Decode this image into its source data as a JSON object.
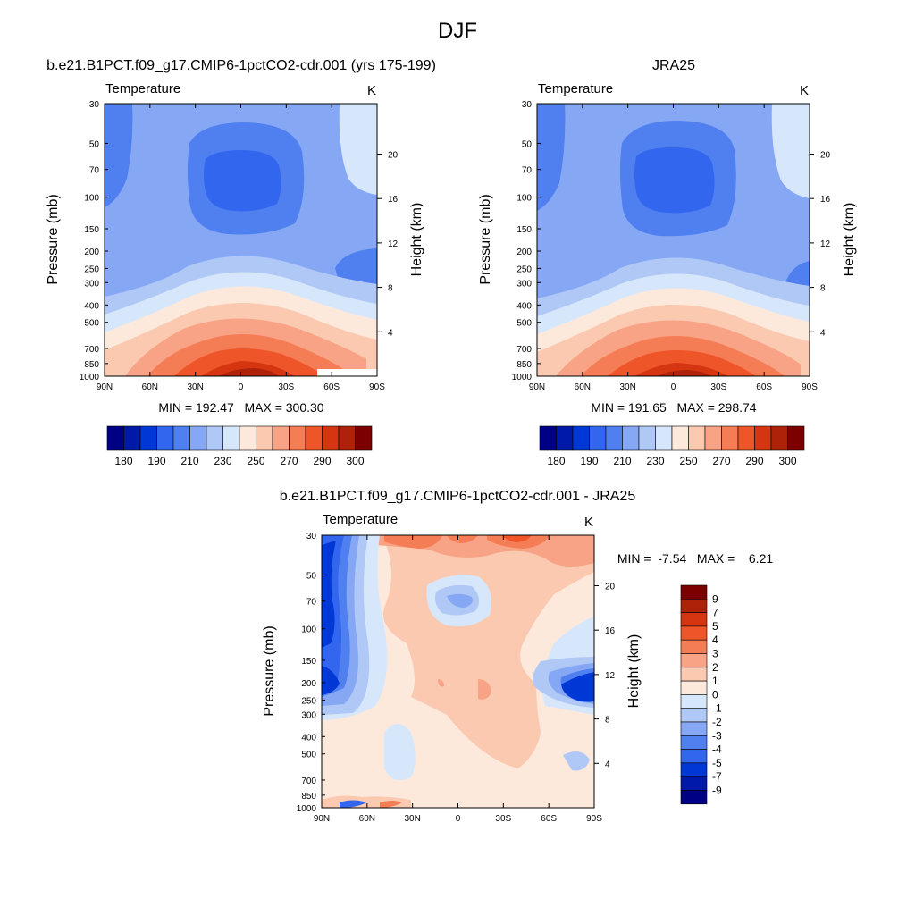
{
  "title": "DJF",
  "chart_data": [
    {
      "type": "heatmap",
      "panel_title": "b.e21.B1PCT.f09_g17.CMIP6-1pctCO2-cdr.001 (yrs 175-199)",
      "variable": "Temperature",
      "units": "K",
      "xlabel": "",
      "ylabel": "Pressure (mb)",
      "y2label": "Height (km)",
      "x_ticks": [
        "90N",
        "60N",
        "30N",
        "0",
        "30S",
        "60S",
        "90S"
      ],
      "y_ticks": [
        "30",
        "50",
        "70",
        "100",
        "150",
        "200",
        "250",
        "300",
        "400",
        "500",
        "700",
        "850",
        "1000"
      ],
      "y_tick_values": [
        30,
        50,
        70,
        100,
        150,
        200,
        250,
        300,
        400,
        500,
        700,
        850,
        1000
      ],
      "height_ticks": [
        "20",
        "16",
        "12",
        "8",
        "4"
      ],
      "height_tick_values": [
        20,
        16,
        12,
        8,
        4
      ],
      "xlim": [
        90,
        -90
      ],
      "ylim": [
        1000,
        30
      ],
      "stats_text": "MIN = 192.47   MAX = 300.30",
      "min": 192.47,
      "max": 300.3
    },
    {
      "type": "heatmap",
      "panel_title": "JRA25",
      "variable": "Temperature",
      "units": "K",
      "xlabel": "",
      "ylabel": "Pressure (mb)",
      "y2label": "Height (km)",
      "x_ticks": [
        "90N",
        "60N",
        "30N",
        "0",
        "30S",
        "60S",
        "90S"
      ],
      "y_ticks": [
        "30",
        "50",
        "70",
        "100",
        "150",
        "200",
        "250",
        "300",
        "400",
        "500",
        "700",
        "850",
        "1000"
      ],
      "y_tick_values": [
        30,
        50,
        70,
        100,
        150,
        200,
        250,
        300,
        400,
        500,
        700,
        850,
        1000
      ],
      "height_ticks": [
        "20",
        "16",
        "12",
        "8",
        "4"
      ],
      "height_tick_values": [
        20,
        16,
        12,
        8,
        4
      ],
      "xlim": [
        90,
        -90
      ],
      "ylim": [
        1000,
        30
      ],
      "stats_text": "MIN = 191.65   MAX = 298.74",
      "min": 191.65,
      "max": 298.74
    },
    {
      "type": "heatmap",
      "panel_title": "b.e21.B1PCT.f09_g17.CMIP6-1pctCO2-cdr.001 - JRA25",
      "variable": "Temperature",
      "units": "K",
      "xlabel": "",
      "ylabel": "Pressure (mb)",
      "y2label": "Height (km)",
      "x_ticks": [
        "90N",
        "60N",
        "30N",
        "0",
        "30S",
        "60S",
        "90S"
      ],
      "y_ticks": [
        "30",
        "50",
        "70",
        "100",
        "150",
        "200",
        "250",
        "300",
        "400",
        "500",
        "700",
        "850",
        "1000"
      ],
      "y_tick_values": [
        30,
        50,
        70,
        100,
        150,
        200,
        250,
        300,
        400,
        500,
        700,
        850,
        1000
      ],
      "height_ticks": [
        "20",
        "16",
        "12",
        "8",
        "4"
      ],
      "height_tick_values": [
        20,
        16,
        12,
        8,
        4
      ],
      "xlim": [
        90,
        -90
      ],
      "ylim": [
        1000,
        30
      ],
      "stats_text": "MIN =  -7.54   MAX =    6.21",
      "min": -7.54,
      "max": 6.21
    }
  ],
  "colorbar_temp": {
    "colors": [
      "#000085",
      "#0019a8",
      "#0038d6",
      "#3366ee",
      "#5080f0",
      "#86a8f4",
      "#b0c8f6",
      "#d7e7fb",
      "#fde8dc",
      "#fbc9b0",
      "#f8a286",
      "#f57d55",
      "#ee5529",
      "#d53510",
      "#ad2208",
      "#7d0000"
    ],
    "labels": [
      "180",
      "190",
      "210",
      "230",
      "250",
      "270",
      "290",
      "300"
    ]
  },
  "colorbar_diff": {
    "colors": [
      "#000085",
      "#0019a8",
      "#0038d6",
      "#3366ee",
      "#5080f0",
      "#86a8f4",
      "#b0c8f6",
      "#d7e7fb",
      "#fde8dc",
      "#fbc9b0",
      "#f8a286",
      "#f57d55",
      "#ee5529",
      "#d53510",
      "#ad2208",
      "#7d0000"
    ],
    "labels": [
      "9",
      "7",
      "5",
      "4",
      "3",
      "2",
      "1",
      "0",
      "-1",
      "-2",
      "-3",
      "-4",
      "-5",
      "-7",
      "-9"
    ]
  }
}
